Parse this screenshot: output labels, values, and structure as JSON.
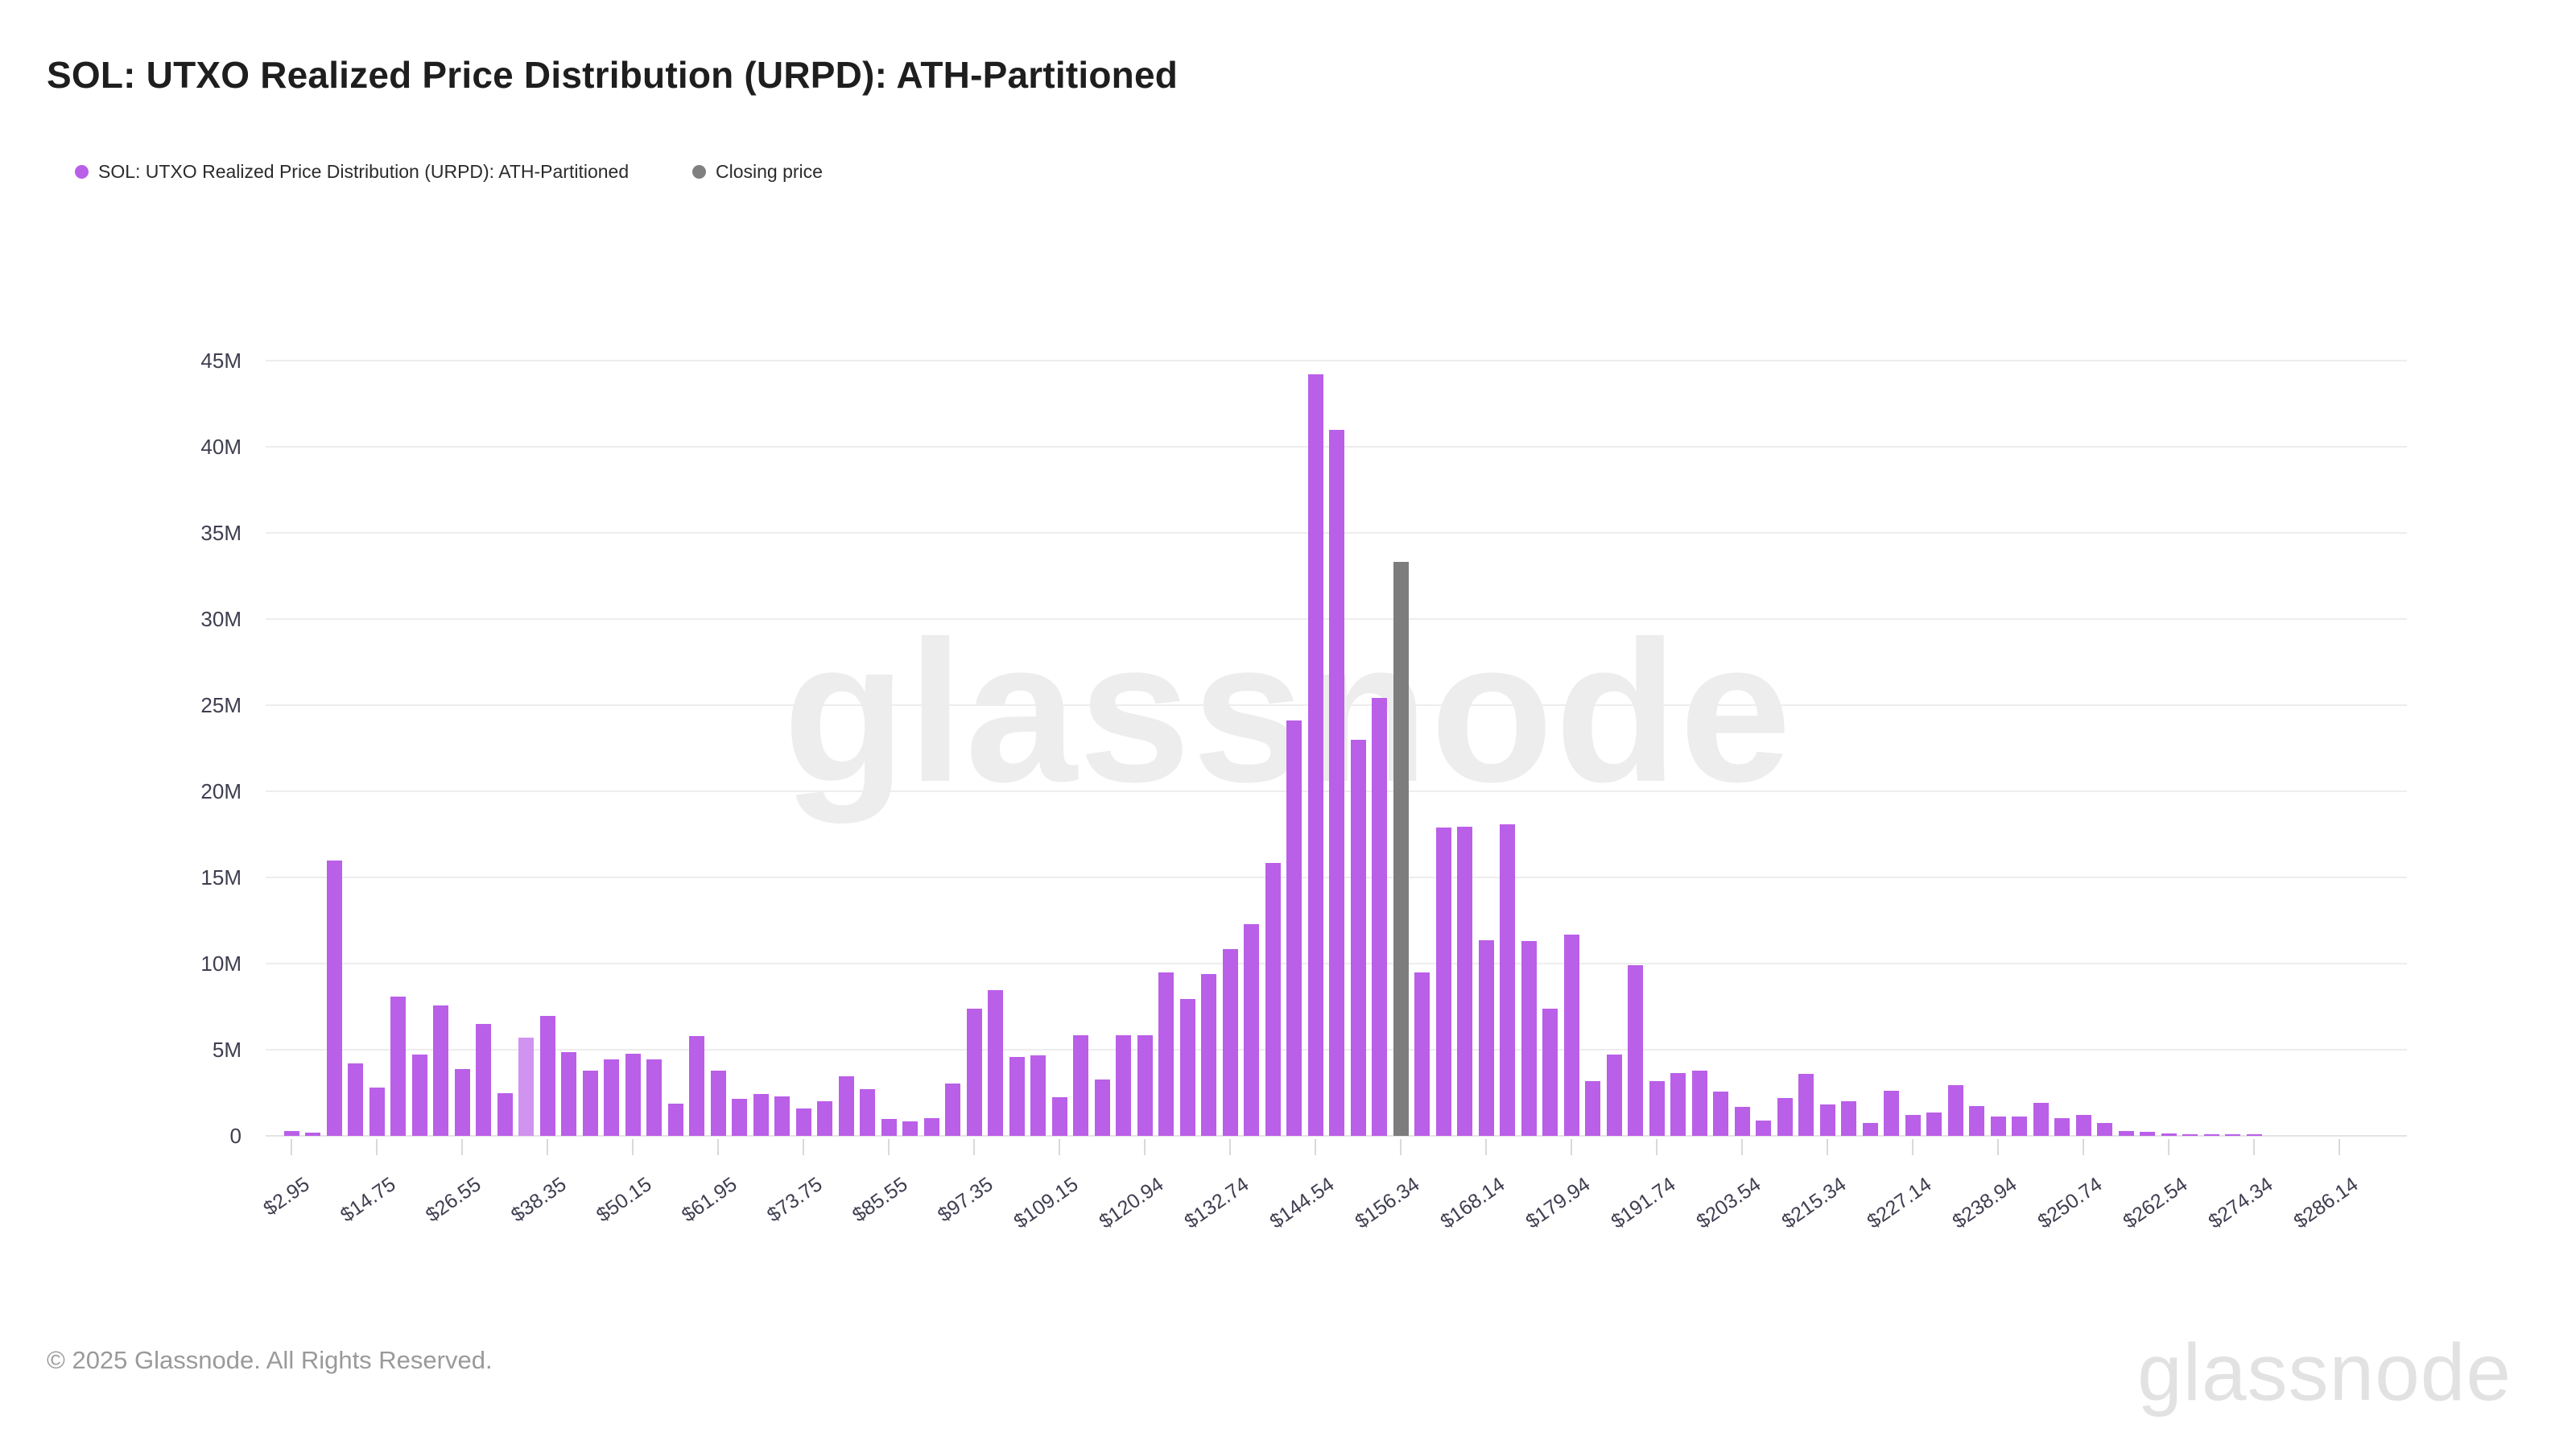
{
  "title": "SOL: UTXO Realized Price Distribution (URPD): ATH-Partitioned",
  "legend": {
    "items": [
      {
        "label": "SOL: UTXO Realized Price Distribution (URPD): ATH-Partitioned",
        "color": "#ba5fe8"
      },
      {
        "label": "Closing price",
        "color": "#808080"
      }
    ]
  },
  "watermark": "glassnode",
  "footer": {
    "copyright": "© 2025 Glassnode. All Rights Reserved."
  },
  "brand": "glassnode",
  "colors": {
    "series_purple": "#ba5fe8",
    "series_light_purple": "#d093ef",
    "closing_price_gray": "#7d7d7d",
    "legend_gray_dot": "#808080",
    "gridline": "#ededed",
    "axis_text": "#3e3e50",
    "title_text": "#1e1e1e",
    "footer_text": "#9a9a9a",
    "background": "#ffffff"
  },
  "chart_data": {
    "type": "bar",
    "title": "SOL: UTXO Realized Price Distribution (URPD): ATH-Partitioned",
    "xlabel": "",
    "ylabel": "",
    "unit": "SOL supply (millions)",
    "ylim": [
      0,
      45
    ],
    "grid": "horizontal",
    "legend_position": "top-left",
    "y_ticks": [
      {
        "label": "0",
        "v": 0
      },
      {
        "label": "5M",
        "v": 5
      },
      {
        "label": "10M",
        "v": 10
      },
      {
        "label": "15M",
        "v": 15
      },
      {
        "label": "20M",
        "v": 20
      },
      {
        "label": "25M",
        "v": 25
      },
      {
        "label": "30M",
        "v": 30
      },
      {
        "label": "35M",
        "v": 35
      },
      {
        "label": "40M",
        "v": 40
      },
      {
        "label": "45M",
        "v": 45
      }
    ],
    "x_tick_labels": [
      "$2.95",
      "$14.75",
      "$26.55",
      "$38.35",
      "$50.15",
      "$61.95",
      "$73.75",
      "$85.55",
      "$97.35",
      "$109.15",
      "$120.94",
      "$132.74",
      "$144.54",
      "$156.34",
      "$168.14",
      "$179.94",
      "$191.74",
      "$203.54",
      "$215.34",
      "$227.14",
      "$238.94",
      "$250.74",
      "$262.54",
      "$274.34",
      "$286.14"
    ],
    "closing_price_bin": "$156.34",
    "closing_price_bar_value": 33.3,
    "series": [
      {
        "name": "SOL: UTXO Realized Price Distribution (URPD): ATH-Partitioned",
        "color": "#ba5fe8"
      },
      {
        "name": "Closing price",
        "color": "#7d7d7d"
      }
    ],
    "bars": [
      {
        "p": "$2.95",
        "v": 0.3,
        "c": "p"
      },
      {
        "p": "$5.90",
        "v": 0.2,
        "c": "p"
      },
      {
        "p": "$8.85",
        "v": 16.0,
        "c": "p"
      },
      {
        "p": "$11.80",
        "v": 4.2,
        "c": "p"
      },
      {
        "p": "$14.75",
        "v": 2.8,
        "c": "p"
      },
      {
        "p": "$17.70",
        "v": 8.1,
        "c": "p"
      },
      {
        "p": "$20.65",
        "v": 4.7,
        "c": "p"
      },
      {
        "p": "$23.60",
        "v": 7.55,
        "c": "p"
      },
      {
        "p": "$26.55",
        "v": 3.9,
        "c": "p"
      },
      {
        "p": "$29.50",
        "v": 6.5,
        "c": "p"
      },
      {
        "p": "$32.45",
        "v": 2.5,
        "c": "p"
      },
      {
        "p": "$35.40",
        "v": 5.7,
        "c": "l"
      },
      {
        "p": "$38.35",
        "v": 6.95,
        "c": "p"
      },
      {
        "p": "$41.30",
        "v": 4.85,
        "c": "p"
      },
      {
        "p": "$44.25",
        "v": 3.8,
        "c": "p"
      },
      {
        "p": "$47.20",
        "v": 4.45,
        "c": "p"
      },
      {
        "p": "$50.15",
        "v": 4.75,
        "c": "p"
      },
      {
        "p": "$53.10",
        "v": 4.45,
        "c": "p"
      },
      {
        "p": "$56.05",
        "v": 1.85,
        "c": "p"
      },
      {
        "p": "$59.00",
        "v": 5.8,
        "c": "p"
      },
      {
        "p": "$61.95",
        "v": 3.8,
        "c": "p"
      },
      {
        "p": "$64.90",
        "v": 2.15,
        "c": "p"
      },
      {
        "p": "$67.85",
        "v": 2.45,
        "c": "p"
      },
      {
        "p": "$70.80",
        "v": 2.3,
        "c": "p"
      },
      {
        "p": "$73.75",
        "v": 1.6,
        "c": "p"
      },
      {
        "p": "$76.70",
        "v": 2.0,
        "c": "p"
      },
      {
        "p": "$79.65",
        "v": 3.45,
        "c": "p"
      },
      {
        "p": "$82.60",
        "v": 2.7,
        "c": "p"
      },
      {
        "p": "$85.55",
        "v": 1.0,
        "c": "p"
      },
      {
        "p": "$88.50",
        "v": 0.85,
        "c": "p"
      },
      {
        "p": "$91.45",
        "v": 1.05,
        "c": "p"
      },
      {
        "p": "$94.40",
        "v": 3.05,
        "c": "p"
      },
      {
        "p": "$97.35",
        "v": 7.4,
        "c": "p"
      },
      {
        "p": "$100.30",
        "v": 8.45,
        "c": "p"
      },
      {
        "p": "$103.25",
        "v": 4.6,
        "c": "p"
      },
      {
        "p": "$106.20",
        "v": 4.65,
        "c": "p"
      },
      {
        "p": "$109.15",
        "v": 2.25,
        "c": "p"
      },
      {
        "p": "$112.10",
        "v": 5.85,
        "c": "p"
      },
      {
        "p": "$115.05",
        "v": 3.25,
        "c": "p"
      },
      {
        "p": "$118.00",
        "v": 5.85,
        "c": "p"
      },
      {
        "p": "$120.94",
        "v": 5.85,
        "c": "p"
      },
      {
        "p": "$123.89",
        "v": 9.5,
        "c": "p"
      },
      {
        "p": "$126.84",
        "v": 7.95,
        "c": "p"
      },
      {
        "p": "$129.79",
        "v": 9.4,
        "c": "p"
      },
      {
        "p": "$132.74",
        "v": 10.85,
        "c": "p"
      },
      {
        "p": "$135.69",
        "v": 12.3,
        "c": "p"
      },
      {
        "p": "$138.64",
        "v": 15.85,
        "c": "p"
      },
      {
        "p": "$141.59",
        "v": 24.1,
        "c": "p"
      },
      {
        "p": "$144.54",
        "v": 44.2,
        "c": "p"
      },
      {
        "p": "$147.49",
        "v": 41.0,
        "c": "p"
      },
      {
        "p": "$150.44",
        "v": 23.0,
        "c": "p"
      },
      {
        "p": "$153.39",
        "v": 25.4,
        "c": "p"
      },
      {
        "p": "$156.34",
        "v": 33.3,
        "c": "g"
      },
      {
        "p": "$159.29",
        "v": 9.5,
        "c": "p"
      },
      {
        "p": "$162.24",
        "v": 17.9,
        "c": "p"
      },
      {
        "p": "$165.19",
        "v": 17.95,
        "c": "p"
      },
      {
        "p": "$168.14",
        "v": 11.35,
        "c": "p"
      },
      {
        "p": "$171.09",
        "v": 18.1,
        "c": "p"
      },
      {
        "p": "$174.04",
        "v": 11.3,
        "c": "p"
      },
      {
        "p": "$176.99",
        "v": 7.4,
        "c": "p"
      },
      {
        "p": "$179.94",
        "v": 11.7,
        "c": "p"
      },
      {
        "p": "$182.89",
        "v": 3.2,
        "c": "p"
      },
      {
        "p": "$185.84",
        "v": 4.7,
        "c": "p"
      },
      {
        "p": "$188.79",
        "v": 9.9,
        "c": "p"
      },
      {
        "p": "$191.74",
        "v": 3.2,
        "c": "p"
      },
      {
        "p": "$194.69",
        "v": 3.65,
        "c": "p"
      },
      {
        "p": "$197.64",
        "v": 3.8,
        "c": "p"
      },
      {
        "p": "$200.59",
        "v": 2.55,
        "c": "p"
      },
      {
        "p": "$203.54",
        "v": 1.7,
        "c": "p"
      },
      {
        "p": "$206.49",
        "v": 0.9,
        "c": "p"
      },
      {
        "p": "$209.44",
        "v": 2.2,
        "c": "p"
      },
      {
        "p": "$212.39",
        "v": 3.6,
        "c": "p"
      },
      {
        "p": "$215.34",
        "v": 1.8,
        "c": "p"
      },
      {
        "p": "$218.29",
        "v": 2.0,
        "c": "p"
      },
      {
        "p": "$221.24",
        "v": 0.75,
        "c": "p"
      },
      {
        "p": "$224.19",
        "v": 2.6,
        "c": "p"
      },
      {
        "p": "$227.14",
        "v": 1.2,
        "c": "p"
      },
      {
        "p": "$230.09",
        "v": 1.35,
        "c": "p"
      },
      {
        "p": "$233.04",
        "v": 2.95,
        "c": "p"
      },
      {
        "p": "$235.99",
        "v": 1.75,
        "c": "p"
      },
      {
        "p": "$238.94",
        "v": 1.1,
        "c": "p"
      },
      {
        "p": "$241.89",
        "v": 1.1,
        "c": "p"
      },
      {
        "p": "$244.84",
        "v": 1.9,
        "c": "p"
      },
      {
        "p": "$247.79",
        "v": 1.05,
        "c": "p"
      },
      {
        "p": "$250.74",
        "v": 1.2,
        "c": "p"
      },
      {
        "p": "$253.69",
        "v": 0.75,
        "c": "p"
      },
      {
        "p": "$256.64",
        "v": 0.3,
        "c": "p"
      },
      {
        "p": "$259.59",
        "v": 0.25,
        "c": "p"
      },
      {
        "p": "$262.54",
        "v": 0.12,
        "c": "p"
      },
      {
        "p": "$265.49",
        "v": 0.08,
        "c": "p"
      },
      {
        "p": "$268.44",
        "v": 0.06,
        "c": "p"
      },
      {
        "p": "$271.39",
        "v": 0.08,
        "c": "p"
      },
      {
        "p": "$274.34",
        "v": 0.04,
        "c": "p"
      },
      {
        "p": "$277.29",
        "v": 0,
        "c": "p"
      },
      {
        "p": "$280.24",
        "v": 0,
        "c": "p"
      },
      {
        "p": "$283.19",
        "v": 0,
        "c": "p"
      },
      {
        "p": "$286.14",
        "v": 0,
        "c": "p"
      }
    ]
  }
}
